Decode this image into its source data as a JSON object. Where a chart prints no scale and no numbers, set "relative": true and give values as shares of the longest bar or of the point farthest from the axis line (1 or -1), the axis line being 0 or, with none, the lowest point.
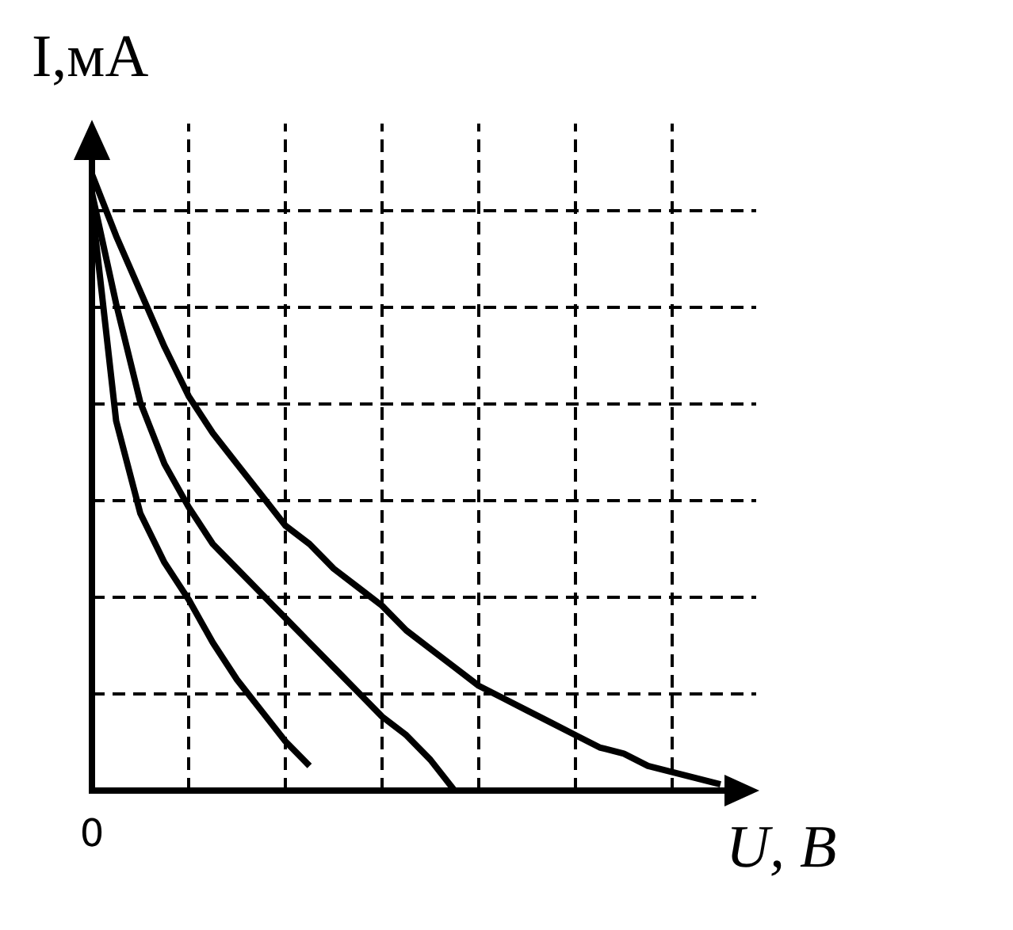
{
  "chart_data": {
    "type": "line",
    "relative": true,
    "xlabel": "U, В",
    "ylabel": "I,мА",
    "annotations": [
      "0"
    ],
    "categories": [
      null,
      null,
      null,
      null,
      null,
      null,
      null,
      null,
      null,
      null,
      null,
      null,
      null,
      null,
      null,
      null,
      null,
      null,
      null,
      null,
      null,
      null,
      null,
      null,
      null,
      null,
      null
    ],
    "grid": true,
    "marker": "none",
    "line_style": "solid",
    "series": [
      {
        "color": "#000000",
        "values": [
          0.95,
          0.6,
          0.45,
          0.37,
          0.31,
          0.24,
          0.18,
          0.13,
          0.08,
          0.04,
          null,
          null,
          null,
          null,
          null,
          null,
          null,
          null,
          null,
          null,
          null,
          null,
          null,
          null,
          null,
          null,
          null
        ]
      },
      {
        "color": "#000000",
        "values": [
          0.97,
          0.79,
          0.63,
          0.53,
          0.46,
          0.4,
          0.36,
          0.32,
          0.28,
          0.24,
          0.2,
          0.16,
          0.12,
          0.09,
          0.05,
          0,
          null,
          null,
          null,
          null,
          null,
          null,
          null,
          null,
          null,
          null,
          null
        ]
      },
      {
        "color": "#000000",
        "values": [
          1,
          0.9,
          0.81,
          0.72,
          0.64,
          0.58,
          0.53,
          0.48,
          0.43,
          0.4,
          0.36,
          0.33,
          0.3,
          0.26,
          0.23,
          0.2,
          0.17,
          0.15,
          0.13,
          0.11,
          0.09,
          0.07,
          0.06,
          0.04,
          0.03,
          0.02,
          0.01
        ]
      }
    ]
  }
}
